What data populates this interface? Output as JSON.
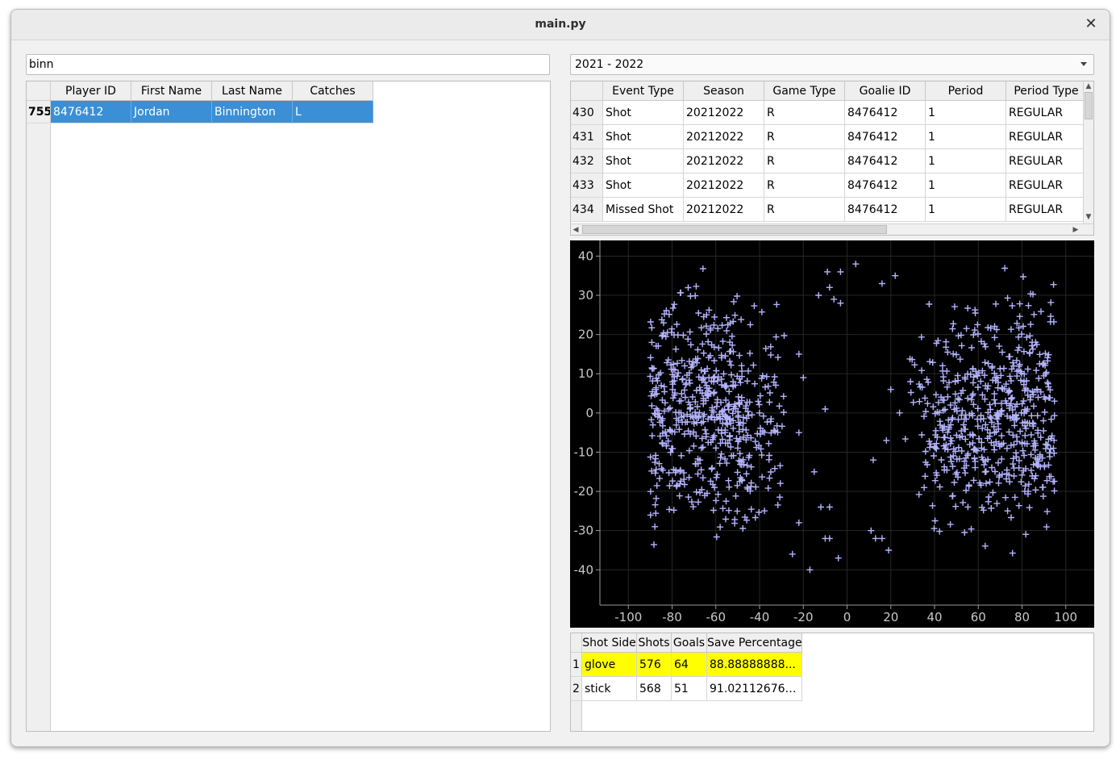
{
  "window": {
    "title": "main.py"
  },
  "search": {
    "value": "binn"
  },
  "season_select": {
    "selected": "2021 - 2022"
  },
  "players_table": {
    "columns": [
      "Player ID",
      "First Name",
      "Last Name",
      "Catches"
    ],
    "rows": [
      {
        "index": "755",
        "cells": [
          "8476412",
          "Jordan",
          "Binnington",
          "L"
        ]
      }
    ]
  },
  "events_table": {
    "columns": [
      "Event Type",
      "Season",
      "Game Type",
      "Goalie ID",
      "Period",
      "Period Type"
    ],
    "rows": [
      {
        "index": "430",
        "cells": [
          "Shot",
          "20212022",
          "R",
          "8476412",
          "1",
          "REGULAR"
        ]
      },
      {
        "index": "431",
        "cells": [
          "Shot",
          "20212022",
          "R",
          "8476412",
          "1",
          "REGULAR"
        ]
      },
      {
        "index": "432",
        "cells": [
          "Shot",
          "20212022",
          "R",
          "8476412",
          "1",
          "REGULAR"
        ]
      },
      {
        "index": "433",
        "cells": [
          "Shot",
          "20212022",
          "R",
          "8476412",
          "1",
          "REGULAR"
        ]
      },
      {
        "index": "434",
        "cells": [
          "Missed Shot",
          "20212022",
          "R",
          "8476412",
          "1",
          "REGULAR"
        ]
      }
    ]
  },
  "stats_table": {
    "columns": [
      "Shot Side",
      "Shots",
      "Goals",
      "Save Percentage"
    ],
    "rows": [
      {
        "index": "1",
        "cells": [
          "glove",
          "576",
          "64",
          "88.88888888..."
        ],
        "highlight": "#ffff00"
      },
      {
        "index": "2",
        "cells": [
          "stick",
          "568",
          "51",
          "91.021126760..."
        ],
        "highlight": ""
      }
    ]
  },
  "chart_data": {
    "type": "scatter",
    "marker": "plus",
    "marker_color": "#b4b4ff",
    "background": "#000000",
    "xlim": [
      -113,
      113
    ],
    "ylim": [
      -49,
      44
    ],
    "xticks": [
      -100,
      -80,
      -60,
      -40,
      -20,
      0,
      20,
      40,
      60,
      80,
      100
    ],
    "yticks": [
      -40,
      -30,
      -20,
      -10,
      0,
      10,
      20,
      30,
      40
    ],
    "grid": true,
    "clusters": [
      {
        "name": "left zone",
        "x_range": [
          -90,
          -26
        ],
        "y_range": [
          -40,
          40
        ],
        "approx_count": 560
      },
      {
        "name": "right zone",
        "x_range": [
          26,
          95
        ],
        "y_range": [
          -40,
          41
        ],
        "approx_count": 560
      }
    ],
    "sparse_points": [
      [
        -25,
        -36
      ],
      [
        -22,
        -28
      ],
      [
        -17,
        -40
      ],
      [
        -15,
        -15
      ],
      [
        -12,
        -24
      ],
      [
        -10,
        -32
      ],
      [
        -8,
        -32
      ],
      [
        -8,
        -24
      ],
      [
        -10,
        1
      ],
      [
        -20,
        9
      ],
      [
        -22,
        -5
      ],
      [
        -22,
        15
      ],
      [
        -8,
        32
      ],
      [
        -6,
        29
      ],
      [
        -3,
        28
      ],
      [
        -13,
        30
      ],
      [
        -9,
        36
      ],
      [
        -3,
        36
      ],
      [
        4,
        38
      ],
      [
        -4,
        -37
      ],
      [
        11,
        -30
      ],
      [
        12,
        -12
      ],
      [
        13,
        -32
      ],
      [
        16,
        -32
      ],
      [
        19,
        -35
      ],
      [
        18,
        -7
      ],
      [
        20,
        6
      ],
      [
        24,
        0
      ],
      [
        16,
        33
      ],
      [
        22,
        35
      ],
      [
        29,
        8
      ]
    ]
  }
}
